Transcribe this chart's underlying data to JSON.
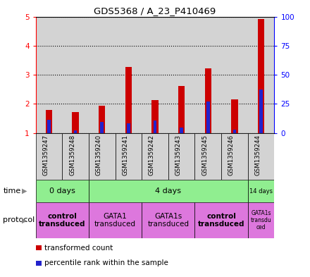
{
  "title": "GDS5368 / A_23_P410469",
  "samples": [
    "GSM1359247",
    "GSM1359248",
    "GSM1359240",
    "GSM1359241",
    "GSM1359242",
    "GSM1359243",
    "GSM1359245",
    "GSM1359246",
    "GSM1359244"
  ],
  "red_values": [
    1.78,
    1.72,
    1.93,
    3.27,
    2.12,
    2.62,
    3.22,
    2.15,
    4.92
  ],
  "blue_values": [
    1.44,
    1.08,
    1.37,
    1.32,
    1.42,
    1.18,
    2.08,
    1.12,
    2.5
  ],
  "ylim_left": [
    1,
    5
  ],
  "ylim_right": [
    0,
    100
  ],
  "yticks_left": [
    1,
    2,
    3,
    4,
    5
  ],
  "yticks_right": [
    0,
    25,
    50,
    75,
    100
  ],
  "red_bar_width": 0.25,
  "blue_bar_width": 0.12,
  "red_color": "#cc0000",
  "blue_color": "#2222cc",
  "bar_bg_color": "#d3d3d3",
  "plot_bg_color": "#ffffff",
  "time_groups": [
    {
      "label": "0 days",
      "start": 0,
      "end": 2
    },
    {
      "label": "4 days",
      "start": 2,
      "end": 8
    },
    {
      "label": "14 days",
      "start": 8,
      "end": 9
    }
  ],
  "protocol_groups": [
    {
      "label": "control\ntransduced",
      "start": 0,
      "end": 2,
      "bold": true
    },
    {
      "label": "GATA1\ntransduced",
      "start": 2,
      "end": 4,
      "bold": false
    },
    {
      "label": "GATA1s\ntransduced",
      "start": 4,
      "end": 6,
      "bold": false
    },
    {
      "label": "control\ntransduced",
      "start": 6,
      "end": 8,
      "bold": true
    },
    {
      "label": "GATA1s\ntransdu\nced",
      "start": 8,
      "end": 9,
      "bold": false
    }
  ],
  "time_color": "#90ee90",
  "protocol_color": "#dd77dd",
  "legend_items": [
    {
      "label": "transformed count",
      "color": "#cc0000"
    },
    {
      "label": "percentile rank within the sample",
      "color": "#2222cc"
    }
  ]
}
